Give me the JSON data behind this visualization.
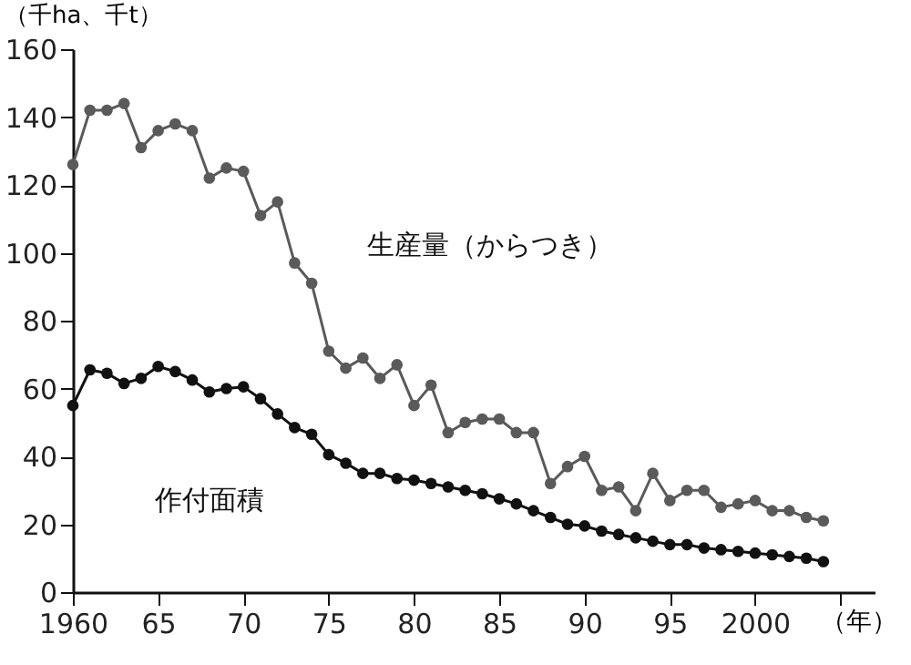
{
  "chart_data": {
    "type": "line",
    "ylabel": "（千ha、千t）",
    "xlabel": "（年）",
    "x": [
      1960,
      1961,
      1962,
      1963,
      1964,
      1965,
      1966,
      1967,
      1968,
      1969,
      1970,
      1971,
      1972,
      1973,
      1974,
      1975,
      1976,
      1977,
      1978,
      1979,
      1980,
      1981,
      1982,
      1983,
      1984,
      1985,
      1986,
      1987,
      1988,
      1989,
      1990,
      1991,
      1992,
      1993,
      1994,
      1995,
      1996,
      1997,
      1998,
      1999,
      2000,
      2001,
      2002,
      2003,
      2004
    ],
    "series": [
      {
        "color": "#5a5a5a",
        "values": [
          126,
          142,
          142,
          144,
          131,
          136,
          138,
          136,
          122,
          125,
          124,
          111,
          115,
          97,
          91,
          71,
          66,
          69,
          63,
          67,
          55,
          61,
          47,
          50,
          51,
          51,
          47,
          47,
          32,
          37,
          40,
          30,
          31,
          24,
          35,
          27,
          30,
          30,
          25,
          26,
          27,
          24,
          24,
          22,
          21
        ]
      },
      {
        "color": "#111111",
        "values": [
          55,
          65.5,
          64.5,
          61.5,
          63,
          66.5,
          65,
          62.5,
          59,
          60,
          60.5,
          57,
          52.5,
          48.5,
          46.5,
          40.5,
          38,
          35,
          35,
          33.5,
          33,
          32,
          31,
          30,
          29,
          27.5,
          26,
          24,
          22,
          20,
          19.5,
          18,
          17,
          16,
          15,
          14,
          14,
          13,
          12.5,
          12,
          11.5,
          11,
          10.5,
          10,
          9
        ]
      }
    ],
    "annotations": [
      "生産量（からつき）",
      "作付面積"
    ],
    "xlim": [
      1960,
      2007
    ],
    "ylim": [
      0,
      160
    ],
    "xticks": [
      1960,
      {
        "value": 1965,
        "label": "65"
      },
      {
        "value": 1970,
        "label": "70"
      },
      {
        "value": 1975,
        "label": "75"
      },
      {
        "value": 1980,
        "label": "80"
      },
      {
        "value": 1985,
        "label": "85"
      },
      {
        "value": 1990,
        "label": "90"
      },
      {
        "value": 1995,
        "label": "95"
      },
      2000,
      {
        "value": 2005,
        "label": null
      }
    ],
    "yticks": [
      0,
      20,
      40,
      60,
      80,
      100,
      120,
      140,
      160
    ],
    "grid": false,
    "marker": "circle",
    "line_style": "solid"
  }
}
